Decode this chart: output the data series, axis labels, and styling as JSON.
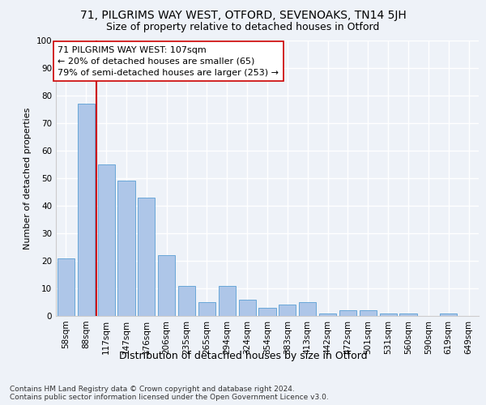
{
  "title1": "71, PILGRIMS WAY WEST, OTFORD, SEVENOAKS, TN14 5JH",
  "title2": "Size of property relative to detached houses in Otford",
  "xlabel": "Distribution of detached houses by size in Otford",
  "ylabel": "Number of detached properties",
  "categories": [
    "58sqm",
    "88sqm",
    "117sqm",
    "147sqm",
    "176sqm",
    "206sqm",
    "235sqm",
    "265sqm",
    "294sqm",
    "324sqm",
    "354sqm",
    "383sqm",
    "413sqm",
    "442sqm",
    "472sqm",
    "501sqm",
    "531sqm",
    "560sqm",
    "590sqm",
    "619sqm",
    "649sqm"
  ],
  "values": [
    21,
    77,
    55,
    49,
    43,
    22,
    11,
    5,
    11,
    6,
    3,
    4,
    5,
    1,
    2,
    2,
    1,
    1,
    0,
    1,
    0
  ],
  "bar_color": "#aec6e8",
  "bar_edge_color": "#5a9fd4",
  "vline_pos": 1.5,
  "vline_color": "#cc0000",
  "annotation_text": "71 PILGRIMS WAY WEST: 107sqm\n← 20% of detached houses are smaller (65)\n79% of semi-detached houses are larger (253) →",
  "annotation_box_color": "white",
  "annotation_box_edge": "#cc0000",
  "ylim": [
    0,
    100
  ],
  "yticks": [
    0,
    10,
    20,
    30,
    40,
    50,
    60,
    70,
    80,
    90,
    100
  ],
  "footer": "Contains HM Land Registry data © Crown copyright and database right 2024.\nContains public sector information licensed under the Open Government Licence v3.0.",
  "background_color": "#eef2f8",
  "grid_color": "white",
  "title1_fontsize": 10,
  "title2_fontsize": 9,
  "xlabel_fontsize": 9,
  "ylabel_fontsize": 8,
  "tick_fontsize": 7.5,
  "annotation_fontsize": 8,
  "footer_fontsize": 6.5
}
